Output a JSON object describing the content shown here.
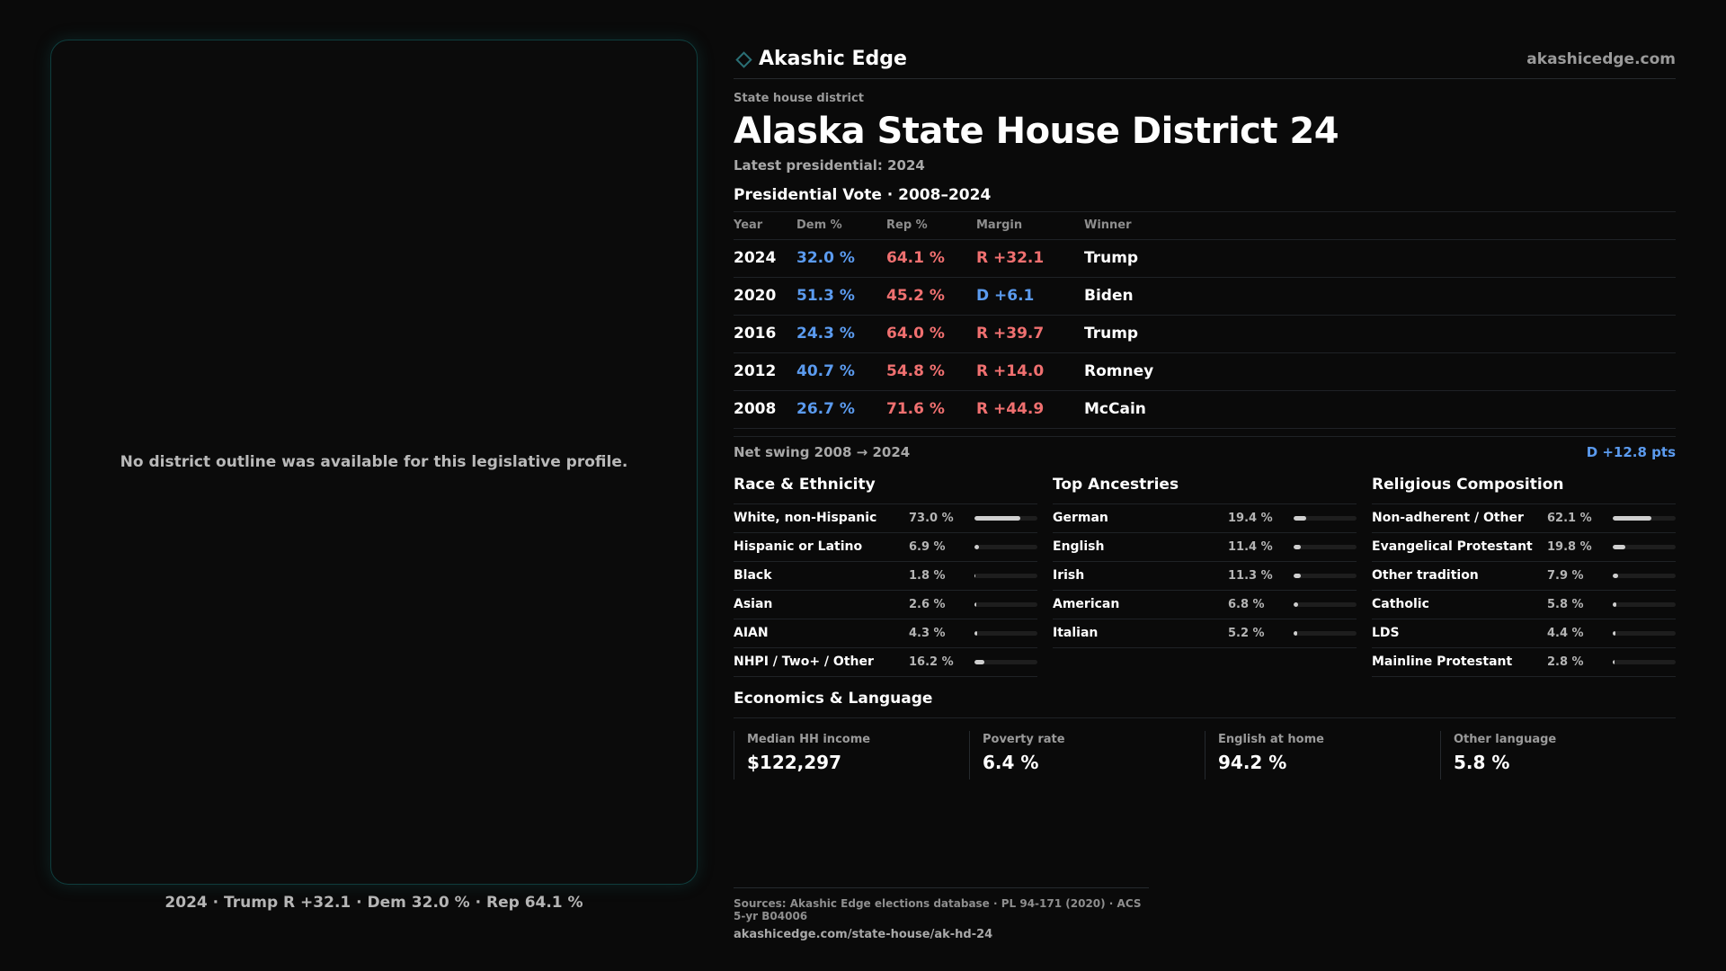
{
  "brand": {
    "name": "Akashic Edge",
    "url": "akashicedge.com",
    "icon": "diamond-outline-icon",
    "accent": "#2a6f75"
  },
  "map": {
    "empty_message": "No district outline was available for this legislative profile.",
    "caption": "2024 · Trump R +32.1 · Dem 32.0 % · Rep 64.1 %"
  },
  "district": {
    "kicker": "State house district",
    "title": "Alaska State House District 24",
    "latest": "Latest presidential: 2024"
  },
  "presidential": {
    "heading": "Presidential Vote · 2008–2024",
    "columns": {
      "year": "Year",
      "dem": "Dem %",
      "rep": "Rep %",
      "margin": "Margin",
      "winner": "Winner"
    },
    "rows": [
      {
        "year": "2024",
        "dem": "32.0 %",
        "rep": "64.1 %",
        "margin": "R +32.1",
        "margin_party": "rep",
        "winner": "Trump"
      },
      {
        "year": "2020",
        "dem": "51.3 %",
        "rep": "45.2 %",
        "margin": "D +6.1",
        "margin_party": "dem",
        "winner": "Biden"
      },
      {
        "year": "2016",
        "dem": "24.3 %",
        "rep": "64.0 %",
        "margin": "R +39.7",
        "margin_party": "rep",
        "winner": "Trump"
      },
      {
        "year": "2012",
        "dem": "40.7 %",
        "rep": "54.8 %",
        "margin": "R +14.0",
        "margin_party": "rep",
        "winner": "Romney"
      },
      {
        "year": "2008",
        "dem": "26.7 %",
        "rep": "71.6 %",
        "margin": "R +44.9",
        "margin_party": "rep",
        "winner": "McCain"
      }
    ],
    "swing_label": "Net swing 2008 → 2024",
    "swing_value": "D +12.8 pts"
  },
  "colors": {
    "dem": "#5b9bef",
    "rep": "#f07070"
  },
  "demographics": [
    {
      "heading": "Race & Ethnicity",
      "items": [
        {
          "label": "White, non-Hispanic",
          "value": "73.0 %",
          "pct": 73.0
        },
        {
          "label": "Hispanic or Latino",
          "value": "6.9 %",
          "pct": 6.9
        },
        {
          "label": "Black",
          "value": "1.8 %",
          "pct": 1.8
        },
        {
          "label": "Asian",
          "value": "2.6 %",
          "pct": 2.6
        },
        {
          "label": "AIAN",
          "value": "4.3 %",
          "pct": 4.3
        },
        {
          "label": "NHPI / Two+ / Other",
          "value": "16.2 %",
          "pct": 16.2
        }
      ]
    },
    {
      "heading": "Top Ancestries",
      "items": [
        {
          "label": "German",
          "value": "19.4 %",
          "pct": 19.4
        },
        {
          "label": "English",
          "value": "11.4 %",
          "pct": 11.4
        },
        {
          "label": "Irish",
          "value": "11.3 %",
          "pct": 11.3
        },
        {
          "label": "American",
          "value": "6.8 %",
          "pct": 6.8
        },
        {
          "label": "Italian",
          "value": "5.2 %",
          "pct": 5.2
        }
      ]
    },
    {
      "heading": "Religious Composition",
      "items": [
        {
          "label": "Non-adherent / Other",
          "value": "62.1 %",
          "pct": 62.1
        },
        {
          "label": "Evangelical Protestant",
          "value": "19.8 %",
          "pct": 19.8
        },
        {
          "label": "Other tradition",
          "value": "7.9 %",
          "pct": 7.9
        },
        {
          "label": "Catholic",
          "value": "5.8 %",
          "pct": 5.8
        },
        {
          "label": "LDS",
          "value": "4.4 %",
          "pct": 4.4
        },
        {
          "label": "Mainline Protestant",
          "value": "2.8 %",
          "pct": 2.8
        }
      ]
    }
  ],
  "economics": {
    "heading": "Economics & Language",
    "cells": [
      {
        "label": "Median HH income",
        "value": "$122,297"
      },
      {
        "label": "Poverty rate",
        "value": "6.4 %"
      },
      {
        "label": "English at home",
        "value": "94.2 %"
      },
      {
        "label": "Other language",
        "value": "5.8 %"
      }
    ]
  },
  "sources": {
    "line": "Sources: Akashic Edge elections database · PL 94-171 (2020) · ACS 5-yr B04006",
    "url": "akashicedge.com/state-house/ak-hd-24"
  }
}
